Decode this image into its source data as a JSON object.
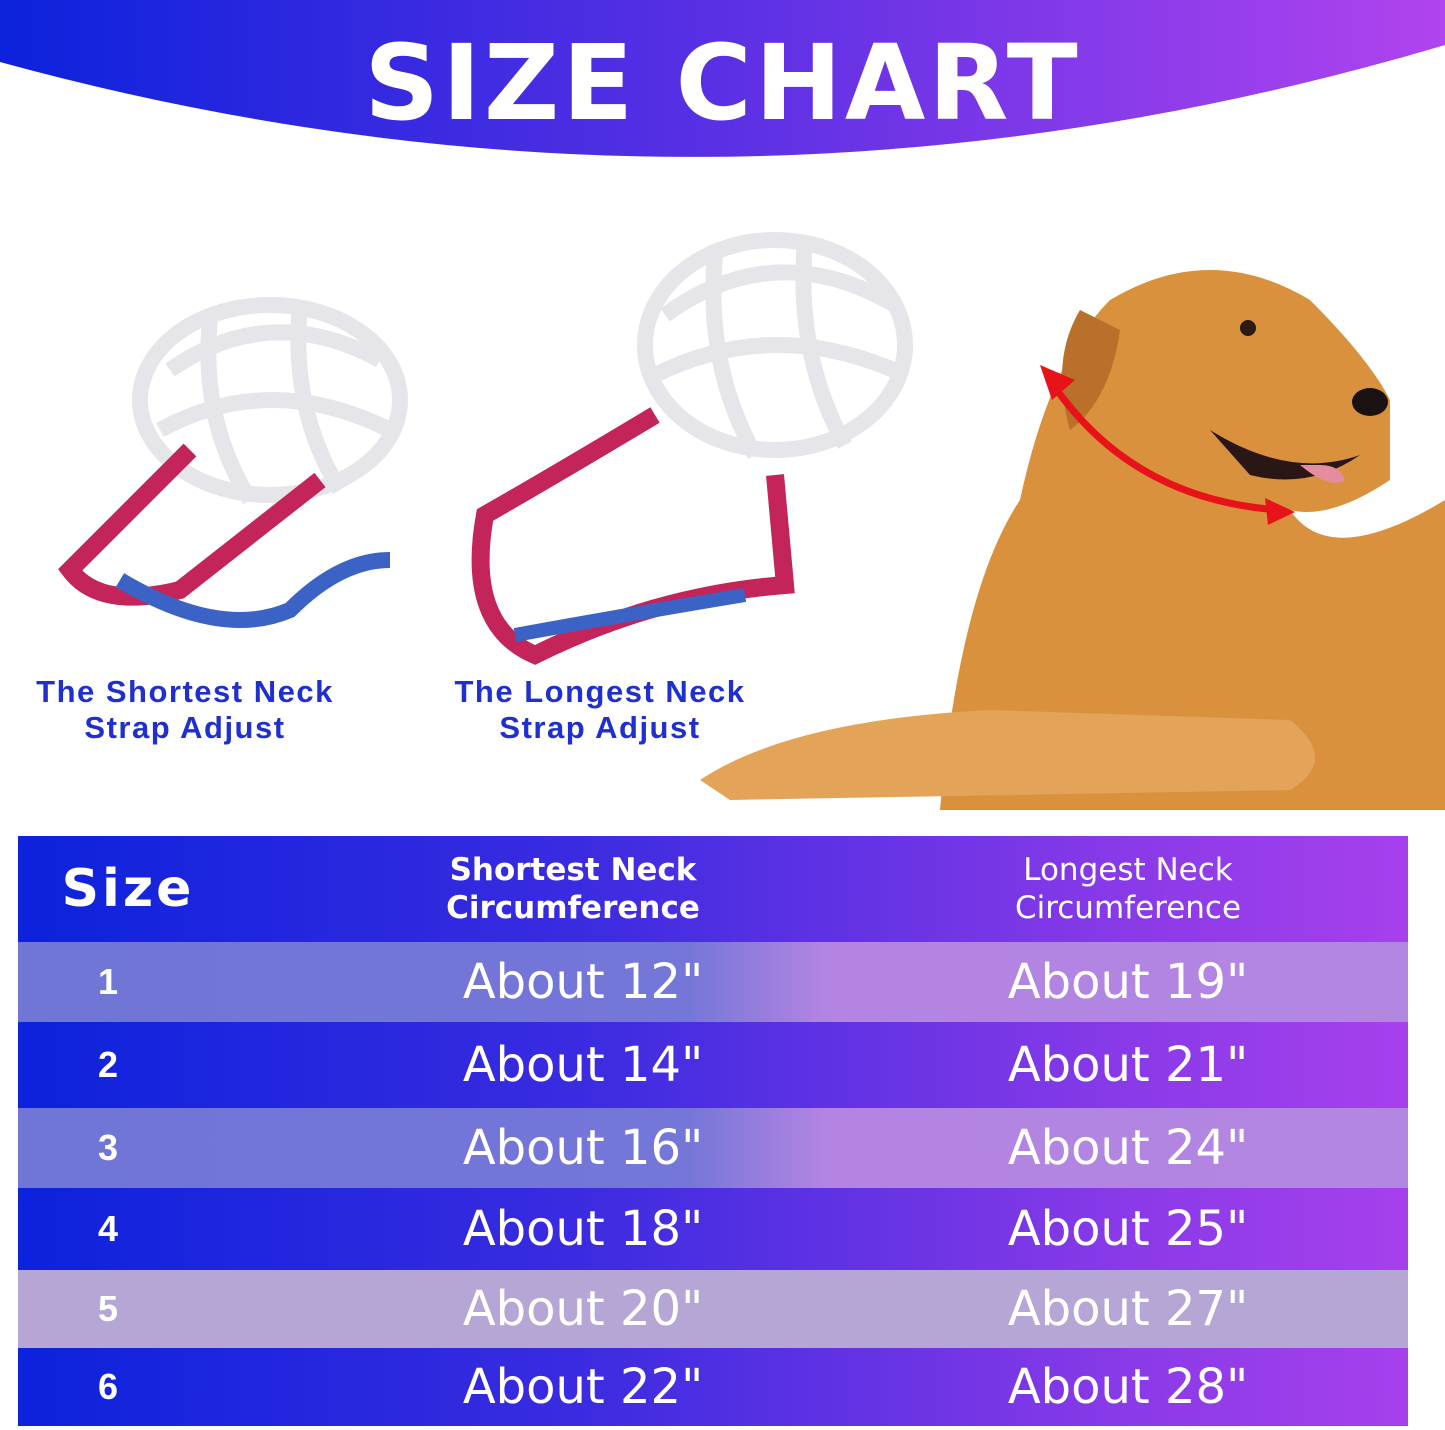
{
  "title": "SIZE CHART",
  "colors": {
    "gradient_start": "#0c22dc",
    "gradient_end": "#a640ec",
    "caption": "#1f2fd0",
    "arrow": "#e8121a"
  },
  "illustrations": {
    "left_caption_line1": "The Shortest Neck",
    "left_caption_line2": "Strap Adjust",
    "right_caption_line1": "The Longest Neck",
    "right_caption_line2": "Strap Adjust"
  },
  "table": {
    "headers": {
      "size": "Size",
      "shortest_line1": "Shortest Neck",
      "shortest_line2": "Circumference",
      "longest_line1": "Longest Neck",
      "longest_line2": "Circumference"
    },
    "rows": [
      {
        "size": "1",
        "shortest": "About 12\"",
        "longest": "About 19\""
      },
      {
        "size": "2",
        "shortest": "About 14\"",
        "longest": "About 21\""
      },
      {
        "size": "3",
        "shortest": "About 16\"",
        "longest": "About 24\""
      },
      {
        "size": "4",
        "shortest": "About 18\"",
        "longest": "About 25\""
      },
      {
        "size": "5",
        "shortest": "About 20\"",
        "longest": "About 27\""
      },
      {
        "size": "6",
        "shortest": "About 22\"",
        "longest": "About 28\""
      }
    ]
  }
}
